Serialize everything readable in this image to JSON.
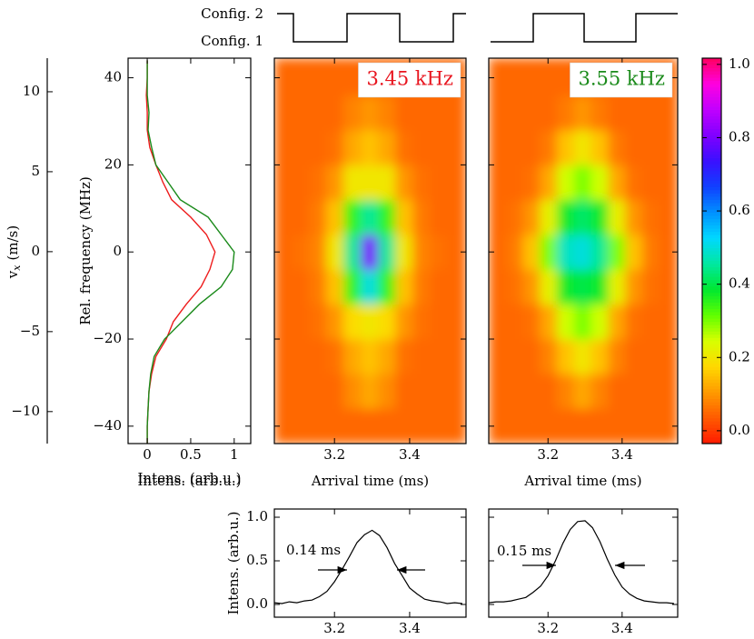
{
  "config_labels": [
    "Config. 2",
    "Config. 1"
  ],
  "chart_data": [
    {
      "type": "profile",
      "ylabel": "Rel. frequency (MHz)",
      "xlabel": "Intens. (arb.u.)",
      "ylim": [
        -44,
        44.5
      ],
      "yticks": [
        {
          "value": -40,
          "label": "−40"
        },
        {
          "value": -20,
          "label": "−20"
        },
        0,
        20,
        40
      ],
      "xlim": [
        -0.22,
        1.19
      ],
      "xticks": [
        0,
        0.5,
        1
      ],
      "y": [
        -44,
        -40,
        -36,
        -32,
        -28,
        -24,
        -20,
        -16,
        -12,
        -8,
        -4,
        0,
        4,
        8,
        12,
        16,
        20,
        24,
        28,
        32,
        36,
        40,
        44
      ],
      "series": [
        {
          "color": "#ee1c1c",
          "values": [
            0,
            0,
            0.01,
            0.02,
            0.05,
            0.1,
            0.22,
            0.3,
            0.45,
            0.62,
            0.72,
            0.78,
            0.68,
            0.5,
            0.28,
            0.18,
            0.1,
            0.03,
            0,
            0,
            -0.01,
            0,
            0
          ]
        },
        {
          "color": "#1a8a1a",
          "values": [
            0,
            0,
            0.01,
            0.02,
            0.04,
            0.08,
            0.2,
            0.4,
            0.6,
            0.85,
            0.98,
            1.0,
            0.85,
            0.7,
            0.38,
            0.24,
            0.1,
            0.05,
            0.01,
            0.02,
            0,
            0,
            0
          ]
        }
      ],
      "y2label": {
        "symbol": "v",
        "subscript": "x",
        "unit": "(m/s)"
      },
      "y2lim": [
        -12,
        12.1
      ],
      "y2ticks": [
        {
          "value": -10,
          "label": "−10"
        },
        {
          "value": -5,
          "label": "−5"
        },
        0,
        5,
        10
      ]
    },
    {
      "type": "heatmap",
      "annotation": "3.45 kHz",
      "annotation_color": "#e8141e",
      "xlabel": "Arrival time (ms)",
      "xlim": [
        3.04,
        3.55
      ],
      "xticks": [
        3.2,
        3.4
      ],
      "ylim": [
        -44,
        44.5
      ],
      "yticks": [
        -40,
        -20,
        0,
        20,
        40
      ],
      "show_ytick_labels": false,
      "x_bins": [
        3.04,
        3.086,
        3.132,
        3.178,
        3.224,
        3.27,
        3.316,
        3.362,
        3.408,
        3.454,
        3.5,
        3.55
      ],
      "y_bins": [
        -44,
        -36,
        -28,
        -20,
        -12,
        -4,
        4,
        12,
        20,
        28,
        36,
        44.5
      ],
      "z": [
        [
          0.05,
          0.05,
          0.05,
          0.05,
          0.05,
          0.05,
          0.05,
          0.05,
          0.05,
          0.05,
          0.05
        ],
        [
          0.05,
          0.05,
          0.05,
          0.05,
          0.09,
          0.12,
          0.09,
          0.05,
          0.05,
          0.05,
          0.05
        ],
        [
          0.05,
          0.05,
          0.05,
          0.06,
          0.12,
          0.15,
          0.12,
          0.06,
          0.05,
          0.05,
          0.05
        ],
        [
          0.05,
          0.05,
          0.06,
          0.1,
          0.18,
          0.2,
          0.18,
          0.1,
          0.06,
          0.05,
          0.05
        ],
        [
          0.05,
          0.05,
          0.07,
          0.15,
          0.35,
          0.5,
          0.35,
          0.15,
          0.07,
          0.05,
          0.05
        ],
        [
          0.05,
          0.06,
          0.08,
          0.2,
          0.45,
          0.8,
          0.45,
          0.2,
          0.08,
          0.06,
          0.05
        ],
        [
          0.05,
          0.05,
          0.07,
          0.15,
          0.35,
          0.45,
          0.35,
          0.15,
          0.07,
          0.05,
          0.05
        ],
        [
          0.05,
          0.05,
          0.06,
          0.1,
          0.2,
          0.2,
          0.2,
          0.1,
          0.06,
          0.05,
          0.05
        ],
        [
          0.05,
          0.05,
          0.05,
          0.06,
          0.12,
          0.15,
          0.12,
          0.06,
          0.05,
          0.05,
          0.05
        ],
        [
          0.05,
          0.05,
          0.05,
          0.05,
          0.08,
          0.1,
          0.08,
          0.05,
          0.05,
          0.05,
          0.05
        ],
        [
          0.05,
          0.05,
          0.05,
          0.05,
          0.05,
          0.05,
          0.05,
          0.05,
          0.05,
          0.05,
          0.05
        ]
      ]
    },
    {
      "type": "heatmap",
      "annotation": "3.55 kHz",
      "annotation_color": "#1a8a1a",
      "xlabel": "Arrival time (ms)",
      "xlim": [
        3.04,
        3.55
      ],
      "xticks": [
        3.2,
        3.4
      ],
      "ylim": [
        -44,
        44.5
      ],
      "yticks": [
        -40,
        -20,
        0,
        20,
        40
      ],
      "show_ytick_labels": false,
      "x_bins": [
        3.04,
        3.086,
        3.132,
        3.178,
        3.224,
        3.27,
        3.316,
        3.362,
        3.408,
        3.454,
        3.5,
        3.55
      ],
      "y_bins": [
        -44,
        -36,
        -28,
        -20,
        -12,
        -4,
        4,
        12,
        20,
        28,
        36,
        44.5
      ],
      "z": [
        [
          0.05,
          0.05,
          0.05,
          0.05,
          0.05,
          0.05,
          0.05,
          0.05,
          0.05,
          0.05,
          0.05
        ],
        [
          0.05,
          0.05,
          0.05,
          0.05,
          0.08,
          0.12,
          0.08,
          0.05,
          0.05,
          0.05,
          0.05
        ],
        [
          0.05,
          0.05,
          0.05,
          0.08,
          0.15,
          0.2,
          0.15,
          0.08,
          0.05,
          0.05,
          0.05
        ],
        [
          0.05,
          0.05,
          0.06,
          0.12,
          0.25,
          0.3,
          0.25,
          0.12,
          0.06,
          0.05,
          0.05
        ],
        [
          0.05,
          0.06,
          0.1,
          0.22,
          0.38,
          0.4,
          0.38,
          0.22,
          0.1,
          0.06,
          0.05
        ],
        [
          0.05,
          0.07,
          0.15,
          0.3,
          0.48,
          0.5,
          0.45,
          0.3,
          0.15,
          0.07,
          0.05
        ],
        [
          0.05,
          0.06,
          0.1,
          0.22,
          0.38,
          0.42,
          0.38,
          0.22,
          0.1,
          0.06,
          0.05
        ],
        [
          0.05,
          0.05,
          0.06,
          0.12,
          0.25,
          0.3,
          0.25,
          0.12,
          0.06,
          0.05,
          0.05
        ],
        [
          0.05,
          0.05,
          0.05,
          0.07,
          0.15,
          0.2,
          0.15,
          0.07,
          0.05,
          0.05,
          0.05
        ],
        [
          0.05,
          0.05,
          0.05,
          0.05,
          0.07,
          0.1,
          0.07,
          0.05,
          0.05,
          0.05,
          0.05
        ],
        [
          0.05,
          0.05,
          0.05,
          0.05,
          0.05,
          0.05,
          0.05,
          0.05,
          0.05,
          0.05,
          0.05
        ]
      ]
    },
    {
      "type": "colorbar",
      "clim": [
        -0.035,
        1.017
      ],
      "yticks": [
        {
          "value": 0,
          "label": "0.0"
        },
        0.2,
        0.4,
        0.6,
        0.8,
        {
          "value": 1,
          "label": "1.0"
        }
      ],
      "colormap": [
        "#ff1a00",
        "#ff5a00",
        "#ff9a00",
        "#ffd800",
        "#d8ff00",
        "#60ff00",
        "#00e830",
        "#00e8a0",
        "#00d8ff",
        "#0090ff",
        "#1040ff",
        "#3a10ff",
        "#8000ff",
        "#c000ff",
        "#ff00e0",
        "#ff0060"
      ]
    },
    {
      "type": "line",
      "ylabel": "Intens. (arb.u.)",
      "annotation": "0.14 ms",
      "color": "#000000",
      "xlim": [
        3.04,
        3.55
      ],
      "xticks": [
        3.2,
        3.4
      ],
      "ylim": [
        -0.146,
        1.094
      ],
      "yticks": [
        {
          "value": 0,
          "label": "0.0"
        },
        0.5,
        {
          "value": 1,
          "label": "1.0"
        }
      ],
      "x": [
        3.04,
        3.06,
        3.08,
        3.1,
        3.12,
        3.14,
        3.16,
        3.18,
        3.2,
        3.22,
        3.24,
        3.26,
        3.28,
        3.3,
        3.32,
        3.34,
        3.36,
        3.38,
        3.4,
        3.42,
        3.44,
        3.46,
        3.48,
        3.5,
        3.52,
        3.54
      ],
      "values": [
        0.02,
        0.01,
        0.03,
        0.02,
        0.04,
        0.05,
        0.09,
        0.15,
        0.26,
        0.4,
        0.55,
        0.71,
        0.8,
        0.85,
        0.79,
        0.65,
        0.47,
        0.33,
        0.19,
        0.12,
        0.06,
        0.04,
        0.03,
        0.01,
        0.02,
        0.01
      ]
    },
    {
      "type": "line",
      "annotation": "0.15 ms",
      "color": "#000000",
      "show_ytick_labels": false,
      "xlim": [
        3.04,
        3.55
      ],
      "xticks": [
        3.2,
        3.4
      ],
      "ylim": [
        -0.146,
        1.094
      ],
      "yticks": [
        0,
        0.5,
        1
      ],
      "x": [
        3.04,
        3.06,
        3.08,
        3.1,
        3.12,
        3.14,
        3.16,
        3.18,
        3.2,
        3.22,
        3.24,
        3.26,
        3.28,
        3.3,
        3.32,
        3.34,
        3.36,
        3.38,
        3.4,
        3.42,
        3.44,
        3.46,
        3.48,
        3.5,
        3.52,
        3.54
      ],
      "values": [
        0.02,
        0.03,
        0.03,
        0.04,
        0.06,
        0.08,
        0.14,
        0.21,
        0.33,
        0.5,
        0.7,
        0.86,
        0.95,
        0.96,
        0.88,
        0.72,
        0.52,
        0.34,
        0.2,
        0.12,
        0.07,
        0.04,
        0.03,
        0.02,
        0.02,
        0.01
      ]
    }
  ]
}
